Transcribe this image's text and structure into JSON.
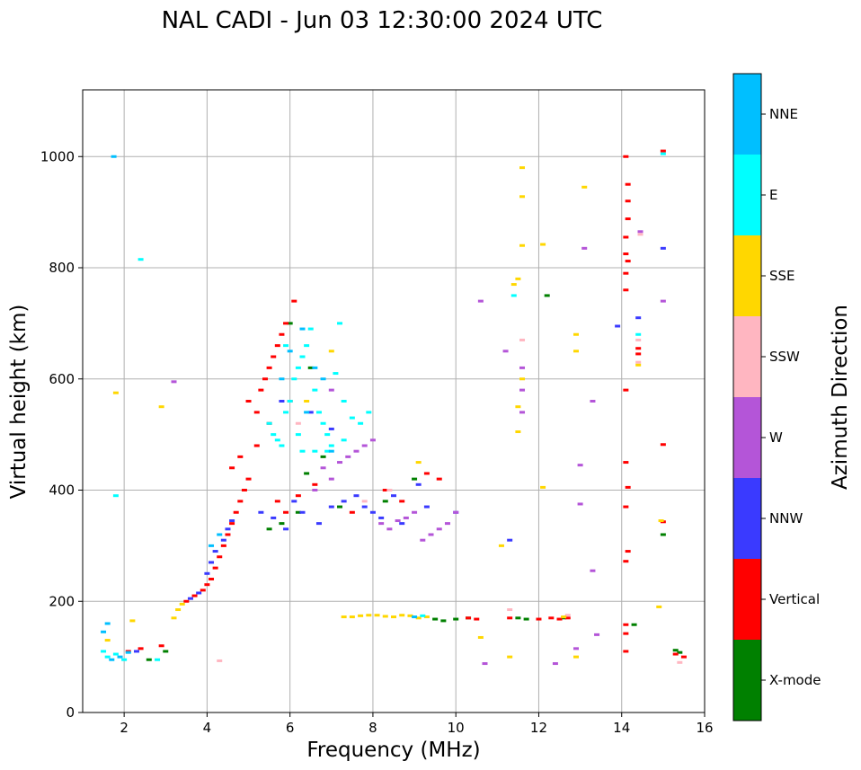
{
  "chart_data": {
    "type": "scatter",
    "title": "NAL CADI - Jun 03 12:30:00 2024 UTC",
    "xlabel": "Frequency (MHz)",
    "ylabel": "Virtual height (km)",
    "xlim": [
      1,
      16
    ],
    "ylim": [
      0,
      1120
    ],
    "xticks": [
      2,
      4,
      6,
      8,
      10,
      12,
      14,
      16
    ],
    "yticks": [
      0,
      200,
      400,
      600,
      800,
      1000
    ],
    "grid": true,
    "colorbar": {
      "label": "Azimuth Direction",
      "categories": [
        "X-mode",
        "Vertical",
        "NNW",
        "W",
        "SSW",
        "SSE",
        "E",
        "NNE"
      ],
      "colors": [
        "#008000",
        "#ff0000",
        "#3a3aff",
        "#b455d8",
        "#ffb6c1",
        "#ffd700",
        "#00ffff",
        "#00bfff"
      ]
    },
    "series": [
      {
        "name": "X-mode",
        "points": [
          [
            2.6,
            95
          ],
          [
            3.0,
            110
          ],
          [
            5.5,
            330
          ],
          [
            5.8,
            340
          ],
          [
            6.2,
            360
          ],
          [
            6.4,
            430
          ],
          [
            6.8,
            460
          ],
          [
            7.2,
            370
          ],
          [
            8.3,
            380
          ],
          [
            9.0,
            420
          ],
          [
            9.5,
            168
          ],
          [
            9.7,
            165
          ],
          [
            10.0,
            168
          ],
          [
            10.3,
            170
          ],
          [
            11.5,
            170
          ],
          [
            11.7,
            168
          ],
          [
            12.2,
            750
          ],
          [
            12.6,
            170
          ],
          [
            14.3,
            158
          ],
          [
            15.0,
            320
          ],
          [
            15.3,
            112
          ],
          [
            15.4,
            108
          ],
          [
            6.5,
            620
          ],
          [
            6.0,
            700
          ]
        ]
      },
      {
        "name": "Vertical",
        "points": [
          [
            2.1,
            110
          ],
          [
            2.4,
            115
          ],
          [
            2.9,
            120
          ],
          [
            3.5,
            200
          ],
          [
            3.7,
            210
          ],
          [
            3.9,
            220
          ],
          [
            4.0,
            230
          ],
          [
            4.1,
            240
          ],
          [
            4.2,
            260
          ],
          [
            4.3,
            280
          ],
          [
            4.4,
            300
          ],
          [
            4.5,
            320
          ],
          [
            4.6,
            340
          ],
          [
            4.7,
            360
          ],
          [
            4.8,
            380
          ],
          [
            4.9,
            400
          ],
          [
            5.0,
            420
          ],
          [
            4.6,
            440
          ],
          [
            4.8,
            460
          ],
          [
            5.2,
            540
          ],
          [
            5.3,
            580
          ],
          [
            5.4,
            600
          ],
          [
            5.5,
            620
          ],
          [
            5.6,
            640
          ],
          [
            5.7,
            660
          ],
          [
            5.8,
            680
          ],
          [
            5.9,
            700
          ],
          [
            6.1,
            740
          ],
          [
            6.0,
            560
          ],
          [
            5.5,
            520
          ],
          [
            5.0,
            560
          ],
          [
            5.2,
            480
          ],
          [
            5.7,
            380
          ],
          [
            5.9,
            360
          ],
          [
            6.2,
            390
          ],
          [
            6.6,
            410
          ],
          [
            7.5,
            360
          ],
          [
            8.3,
            400
          ],
          [
            8.7,
            380
          ],
          [
            9.3,
            430
          ],
          [
            9.6,
            420
          ],
          [
            10.3,
            170
          ],
          [
            10.5,
            168
          ],
          [
            11.3,
            170
          ],
          [
            12.0,
            168
          ],
          [
            12.3,
            170
          ],
          [
            12.5,
            168
          ],
          [
            12.7,
            170
          ],
          [
            14.1,
            1000
          ],
          [
            14.15,
            950
          ],
          [
            14.15,
            920
          ],
          [
            14.15,
            888
          ],
          [
            14.1,
            855
          ],
          [
            14.1,
            825
          ],
          [
            14.15,
            812
          ],
          [
            14.1,
            790
          ],
          [
            14.1,
            760
          ],
          [
            14.1,
            580
          ],
          [
            14.1,
            450
          ],
          [
            14.15,
            405
          ],
          [
            14.1,
            370
          ],
          [
            14.15,
            290
          ],
          [
            14.1,
            272
          ],
          [
            14.1,
            158
          ],
          [
            14.1,
            142
          ],
          [
            14.1,
            110
          ],
          [
            14.4,
            655
          ],
          [
            14.4,
            645
          ],
          [
            15.0,
            1010
          ],
          [
            15.0,
            482
          ],
          [
            15.0,
            343
          ],
          [
            15.3,
            105
          ],
          [
            15.5,
            100
          ]
        ]
      },
      {
        "name": "NNW",
        "points": [
          [
            2.3,
            110
          ],
          [
            3.6,
            205
          ],
          [
            3.8,
            215
          ],
          [
            4.0,
            250
          ],
          [
            4.1,
            270
          ],
          [
            4.2,
            290
          ],
          [
            4.4,
            310
          ],
          [
            4.5,
            330
          ],
          [
            4.6,
            345
          ],
          [
            5.3,
            360
          ],
          [
            5.6,
            350
          ],
          [
            5.9,
            330
          ],
          [
            6.1,
            380
          ],
          [
            6.3,
            360
          ],
          [
            6.7,
            340
          ],
          [
            7.0,
            370
          ],
          [
            7.3,
            380
          ],
          [
            7.6,
            390
          ],
          [
            7.8,
            370
          ],
          [
            8.0,
            360
          ],
          [
            8.2,
            350
          ],
          [
            8.5,
            390
          ],
          [
            8.7,
            340
          ],
          [
            9.1,
            410
          ],
          [
            9.3,
            370
          ],
          [
            10.0,
            360
          ],
          [
            11.3,
            310
          ],
          [
            13.9,
            695
          ],
          [
            14.4,
            710
          ],
          [
            15.0,
            835
          ],
          [
            6.5,
            540
          ],
          [
            5.8,
            560
          ],
          [
            7.0,
            510
          ]
        ]
      },
      {
        "name": "W",
        "points": [
          [
            3.2,
            595
          ],
          [
            6.6,
            400
          ],
          [
            6.8,
            440
          ],
          [
            7.0,
            420
          ],
          [
            7.2,
            450
          ],
          [
            7.4,
            460
          ],
          [
            7.6,
            470
          ],
          [
            7.8,
            480
          ],
          [
            8.0,
            490
          ],
          [
            8.2,
            340
          ],
          [
            8.4,
            330
          ],
          [
            8.6,
            345
          ],
          [
            8.8,
            350
          ],
          [
            9.0,
            360
          ],
          [
            9.2,
            310
          ],
          [
            9.4,
            320
          ],
          [
            9.6,
            330
          ],
          [
            9.8,
            340
          ],
          [
            10.0,
            360
          ],
          [
            10.6,
            740
          ],
          [
            10.7,
            88
          ],
          [
            11.2,
            650
          ],
          [
            11.6,
            620
          ],
          [
            11.6,
            580
          ],
          [
            11.6,
            540
          ],
          [
            12.4,
            88
          ],
          [
            12.9,
            115
          ],
          [
            13.0,
            445
          ],
          [
            13.0,
            375
          ],
          [
            13.1,
            835
          ],
          [
            13.3,
            560
          ],
          [
            13.3,
            255
          ],
          [
            13.4,
            140
          ],
          [
            14.45,
            865
          ],
          [
            15.0,
            740
          ],
          [
            7.0,
            580
          ]
        ]
      },
      {
        "name": "SSW",
        "points": [
          [
            4.3,
            93
          ],
          [
            11.3,
            185
          ],
          [
            11.6,
            670
          ],
          [
            12.7,
            175
          ],
          [
            14.45,
            860
          ],
          [
            14.4,
            670
          ],
          [
            14.4,
            630
          ],
          [
            15.4,
            90
          ],
          [
            8.4,
            400
          ],
          [
            7.8,
            380
          ],
          [
            6.2,
            520
          ]
        ]
      },
      {
        "name": "SSE",
        "points": [
          [
            1.6,
            130
          ],
          [
            1.8,
            575
          ],
          [
            2.2,
            165
          ],
          [
            2.9,
            550
          ],
          [
            3.2,
            170
          ],
          [
            3.3,
            185
          ],
          [
            3.4,
            195
          ],
          [
            7.3,
            172
          ],
          [
            7.5,
            172
          ],
          [
            7.7,
            174
          ],
          [
            7.9,
            175
          ],
          [
            8.1,
            175
          ],
          [
            8.3,
            173
          ],
          [
            8.5,
            172
          ],
          [
            8.7,
            175
          ],
          [
            8.9,
            174
          ],
          [
            9.1,
            170
          ],
          [
            9.3,
            172
          ],
          [
            9.1,
            450
          ],
          [
            10.6,
            135
          ],
          [
            11.1,
            300
          ],
          [
            11.3,
            100
          ],
          [
            11.4,
            770
          ],
          [
            11.5,
            550
          ],
          [
            11.5,
            505
          ],
          [
            11.6,
            928
          ],
          [
            11.6,
            840
          ],
          [
            11.6,
            980
          ],
          [
            11.6,
            600
          ],
          [
            12.1,
            842
          ],
          [
            12.1,
            405
          ],
          [
            12.6,
            172
          ],
          [
            12.9,
            680
          ],
          [
            12.9,
            650
          ],
          [
            12.9,
            100
          ],
          [
            13.1,
            945
          ],
          [
            14.4,
            625
          ],
          [
            14.9,
            190
          ],
          [
            14.95,
            345
          ],
          [
            11.5,
            780
          ],
          [
            6.4,
            560
          ],
          [
            7.0,
            650
          ]
        ]
      },
      {
        "name": "E",
        "points": [
          [
            1.5,
            110
          ],
          [
            1.6,
            100
          ],
          [
            1.8,
            105
          ],
          [
            2.0,
            95
          ],
          [
            1.8,
            390
          ],
          [
            2.8,
            95
          ],
          [
            5.5,
            520
          ],
          [
            5.6,
            500
          ],
          [
            5.7,
            490
          ],
          [
            5.8,
            480
          ],
          [
            5.9,
            540
          ],
          [
            6.0,
            560
          ],
          [
            6.1,
            600
          ],
          [
            6.2,
            620
          ],
          [
            6.3,
            640
          ],
          [
            6.4,
            660
          ],
          [
            6.5,
            690
          ],
          [
            6.6,
            580
          ],
          [
            6.7,
            540
          ],
          [
            6.8,
            520
          ],
          [
            6.9,
            500
          ],
          [
            7.0,
            480
          ],
          [
            7.1,
            610
          ],
          [
            7.2,
            700
          ],
          [
            7.3,
            560
          ],
          [
            7.5,
            530
          ],
          [
            7.7,
            520
          ],
          [
            7.9,
            540
          ],
          [
            6.3,
            470
          ],
          [
            6.6,
            470
          ],
          [
            6.9,
            470
          ],
          [
            7.3,
            490
          ],
          [
            5.9,
            660
          ],
          [
            6.2,
            500
          ],
          [
            9.2,
            174
          ],
          [
            11.4,
            750
          ],
          [
            15.0,
            1005
          ],
          [
            14.4,
            680
          ],
          [
            2.4,
            815
          ]
        ]
      },
      {
        "name": "NNE",
        "points": [
          [
            1.5,
            145
          ],
          [
            1.6,
            160
          ],
          [
            1.7,
            95
          ],
          [
            1.9,
            100
          ],
          [
            2.1,
            108
          ],
          [
            4.1,
            300
          ],
          [
            4.3,
            320
          ],
          [
            6.0,
            650
          ],
          [
            6.3,
            690
          ],
          [
            6.6,
            620
          ],
          [
            6.8,
            600
          ],
          [
            7.0,
            470
          ],
          [
            9.0,
            172
          ],
          [
            6.4,
            540
          ],
          [
            5.8,
            600
          ],
          [
            1.75,
            1000
          ]
        ]
      }
    ]
  }
}
